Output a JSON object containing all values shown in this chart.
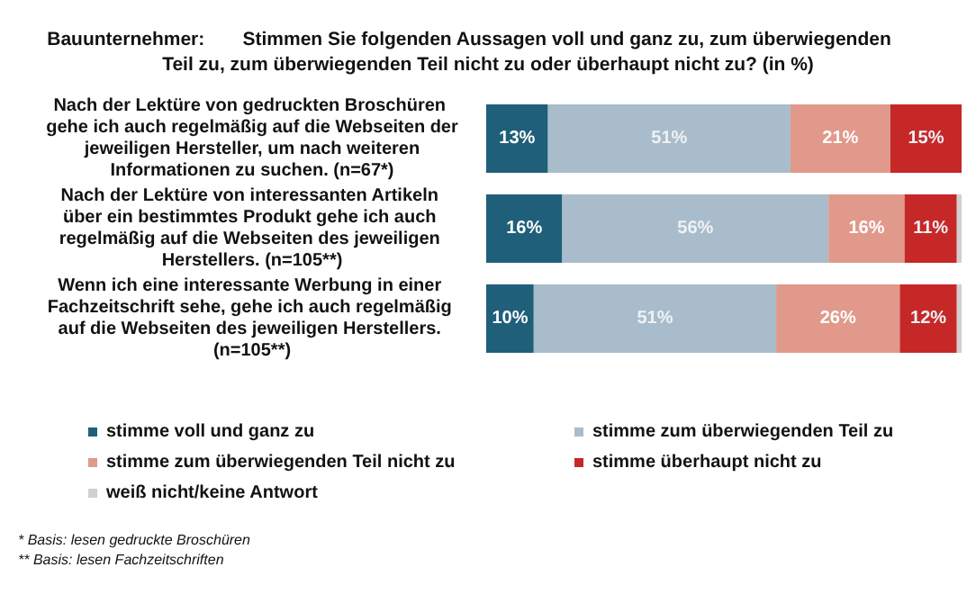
{
  "chart_data": {
    "type": "bar",
    "orientation": "horizontal",
    "stacked": true,
    "title": "Bauunternehmer: Stimmen Sie folgenden Aussagen voll und ganz zu, zum überwiegenden Teil zu, zum überwiegenden Teil nicht zu oder überhaupt nicht zu? (in %)",
    "categories": [
      "Nach der Lektüre von gedruckten Broschüren gehe ich auch regelmäßig auf die Webseiten der jeweiligen Hersteller, um nach weiteren Informationen zu suchen. (n=67*)",
      "Nach der Lektüre von interessanten Artikeln über ein bestimmtes Produkt gehe ich auch regelmäßig auf die Webseiten des jeweiligen Herstellers. (n=105**)",
      "Wenn ich eine interessante Werbung in einer Fachzeitschrift sehe, gehe ich auch regelmäßig auf die Webseiten des jeweiligen Herstellers. (n=105**)"
    ],
    "series": [
      {
        "name": "stimme voll und ganz zu",
        "color": "#1f5f7a",
        "values": [
          13,
          16,
          10
        ],
        "value_labels": [
          "13%",
          "16%",
          "10%"
        ]
      },
      {
        "name": "stimme zum überwiegenden Teil zu",
        "color": "#a9bccb",
        "values": [
          51,
          56,
          51
        ],
        "value_labels": [
          "51%",
          "56%",
          "51%"
        ]
      },
      {
        "name": "stimme zum überwiegenden Teil nicht zu",
        "color": "#e0998a",
        "values": [
          21,
          16,
          26
        ],
        "value_labels": [
          "21%",
          "16%",
          "26%"
        ]
      },
      {
        "name": "stimme überhaupt nicht zu",
        "color": "#c62828",
        "values": [
          15,
          11,
          12
        ],
        "value_labels": [
          "15%",
          "11%",
          "12%"
        ]
      },
      {
        "name": "weiß nicht/keine Antwort",
        "color": "#d0d0d0",
        "values": [
          0,
          1,
          1
        ],
        "value_labels": [
          null,
          null,
          null
        ]
      }
    ],
    "legend": "bottom",
    "annotations": [
      "* Basis: lesen gedruckte Broschüren",
      "** Basis: lesen Fachzeitschriften"
    ]
  }
}
